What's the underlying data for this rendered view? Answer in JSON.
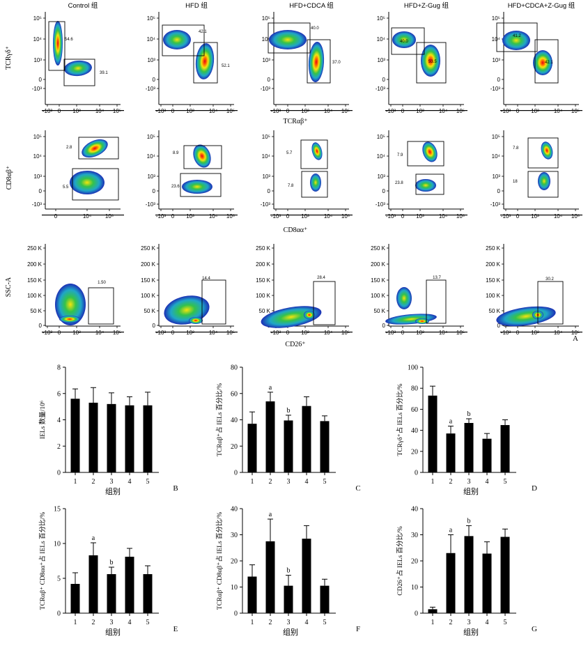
{
  "flow": {
    "column_titles": [
      "Control 组",
      "HFD 组",
      "HFD+CDCA 组",
      "HFD+Z-Gug 组",
      "HFD+CDCA+Z-Gug 组"
    ],
    "row1": {
      "ylabel": "TCRγδ⁺",
      "xlabel": "TCRαβ⁺",
      "yticks": [
        "10⁵",
        "10⁴",
        "10³",
        "0",
        "-10³"
      ],
      "xticks": [
        "-10³",
        "0",
        "10³",
        "10⁴",
        "10⁵"
      ],
      "gates": [
        [
          "54.6",
          "39.1"
        ],
        [
          "42.1",
          "52.1"
        ],
        [
          "40.0",
          "37.0"
        ],
        [
          "40.0",
          "53.5"
        ],
        [
          "41.2",
          "42.1"
        ]
      ]
    },
    "row2": {
      "ylabel": "CD8αβ⁺",
      "xlabel": "CD8αα⁺",
      "yticks": [
        "10⁵",
        "10⁴",
        "10³",
        "0",
        "-10³"
      ],
      "xticks_first": [
        "0",
        "10⁴",
        "10⁵"
      ],
      "xticks": [
        "-10³",
        "0",
        "10³",
        "10⁴",
        "10⁵"
      ],
      "gates": [
        [
          "2.8",
          "5.5"
        ],
        [
          "8.9",
          "23.6"
        ],
        [
          "5.7",
          "7.8"
        ],
        [
          "7.9",
          "23.8"
        ],
        [
          "7.8",
          "18"
        ]
      ]
    },
    "row3": {
      "ylabel": "SSC-A",
      "xlabel": "CD26⁺",
      "yticks": [
        "250 K",
        "200 K",
        "150 K",
        "100 K",
        "50 K",
        "0"
      ],
      "xticks": [
        "-10³",
        "0",
        "10³",
        "10⁴",
        "10⁵"
      ],
      "gates": [
        "1.50",
        "14.4",
        "28.4",
        "13.7",
        "30.2"
      ]
    },
    "panel_letter": "A"
  },
  "chart_data": [
    {
      "type": "bar",
      "panel": "B",
      "ylabel": "IELs 数量/10⁶",
      "xlabel": "组别",
      "categories": [
        "1",
        "2",
        "3",
        "4",
        "5"
      ],
      "values": [
        5.6,
        5.3,
        5.2,
        5.1,
        5.1
      ],
      "errors": [
        0.75,
        1.15,
        0.85,
        0.65,
        1.0
      ],
      "letters": [
        "",
        "",
        "",
        "",
        ""
      ],
      "ylim": [
        0,
        8
      ],
      "yticks": [
        "0",
        "2",
        "4",
        "6",
        "8"
      ]
    },
    {
      "type": "bar",
      "panel": "C",
      "ylabel": "TCRαβ⁺占 IELs 百分比/%",
      "xlabel": "",
      "categories": [
        "1",
        "2",
        "3",
        "4",
        "5"
      ],
      "values": [
        37,
        54,
        39.5,
        50.5,
        39
      ],
      "errors": [
        9,
        7,
        4,
        7,
        4
      ],
      "letters": [
        "",
        "a",
        "b",
        "",
        ""
      ],
      "ylim": [
        0,
        80
      ],
      "yticks": [
        "0",
        "20",
        "40",
        "60",
        "80"
      ]
    },
    {
      "type": "bar",
      "panel": "D",
      "ylabel": "TCRγδ⁺占 IELs 百分比/%",
      "xlabel": "组别",
      "categories": [
        "1",
        "2",
        "3",
        "4",
        "5"
      ],
      "values": [
        73,
        37,
        47,
        32,
        45
      ],
      "errors": [
        9,
        7,
        4,
        5,
        5
      ],
      "letters": [
        "",
        "a",
        "b",
        "",
        ""
      ],
      "ylim": [
        0,
        100
      ],
      "yticks": [
        "0",
        "20",
        "40",
        "60",
        "80",
        "100"
      ]
    },
    {
      "type": "bar",
      "panel": "E",
      "ylabel": "TCRαβ⁺ CD8αα⁺占 IELs 百分比/%",
      "xlabel": "组别",
      "categories": [
        "1",
        "2",
        "3",
        "4",
        "5"
      ],
      "values": [
        4.2,
        8.3,
        5.6,
        8.1,
        5.6
      ],
      "errors": [
        1.6,
        1.8,
        1.0,
        1.2,
        1.2
      ],
      "letters": [
        "",
        "a",
        "b",
        "",
        ""
      ],
      "ylim": [
        0,
        15
      ],
      "yticks": [
        "0",
        "5",
        "10",
        "15"
      ]
    },
    {
      "type": "bar",
      "panel": "F",
      "ylabel": "TCRαβ⁺ CD8αβ⁺占 IELs 百分比/%",
      "xlabel": "组别",
      "categories": [
        "1",
        "2",
        "3",
        "4",
        "5"
      ],
      "values": [
        14,
        27.5,
        10.5,
        28.5,
        10.5
      ],
      "errors": [
        4.5,
        8.5,
        4,
        5,
        2.5
      ],
      "letters": [
        "",
        "a",
        "b",
        "",
        ""
      ],
      "ylim": [
        0,
        40
      ],
      "yticks": [
        "0",
        "10",
        "20",
        "30",
        "40"
      ]
    },
    {
      "type": "bar",
      "panel": "G",
      "ylabel": "CD26⁺占 IELs 百分比/%",
      "xlabel": "组别",
      "categories": [
        "1",
        "2",
        "3",
        "4",
        "5"
      ],
      "values": [
        1.5,
        23,
        29.5,
        22.8,
        29.2
      ],
      "errors": [
        0.8,
        7,
        4,
        4.5,
        3
      ],
      "letters": [
        "",
        "a",
        "b",
        "",
        ""
      ],
      "ylim": [
        0,
        40
      ],
      "yticks": [
        "0",
        "10",
        "20",
        "30",
        "40"
      ]
    }
  ],
  "colors": {
    "bar": "#000000",
    "hot": "#e5001a",
    "mid": "#f6e40c",
    "cool": "#2fb24a",
    "edge": "#1c2fb5"
  }
}
